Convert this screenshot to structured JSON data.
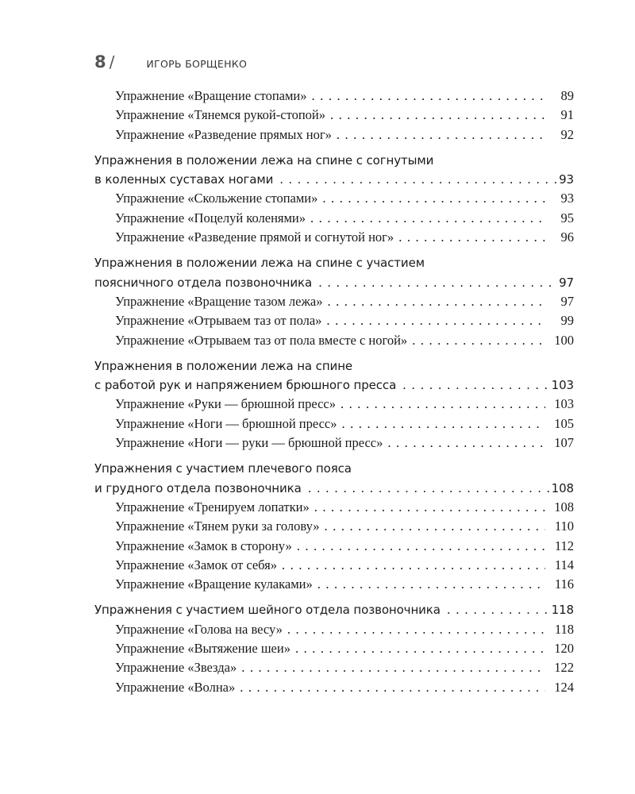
{
  "header": {
    "page_number": "8",
    "separator": "/",
    "author": "ИГОРЬ БОРЩЕНКО"
  },
  "sections": [
    {
      "heading": [],
      "page": "",
      "items": [
        {
          "label": "Упражнение «Вращение стопами»",
          "page": "89"
        },
        {
          "label": "Упражнение «Тянемся рукой-стопой»",
          "page": "91"
        },
        {
          "label": "Упражнение «Разведение прямых ног»",
          "page": "92"
        }
      ]
    },
    {
      "heading": [
        "Упражнения в положении лежа на спине с согнутыми",
        "в коленных суставах ногами"
      ],
      "page": "93",
      "items": [
        {
          "label": "Упражнение «Скольжение стопами»",
          "page": "93"
        },
        {
          "label": "Упражнение «Поцелуй коленями»",
          "page": "95"
        },
        {
          "label": "Упражнение «Разведение прямой и согнутой ног»",
          "page": "96"
        }
      ]
    },
    {
      "heading": [
        "Упражнения в положении лежа на спине с участием",
        "поясничного отдела позвоночника"
      ],
      "page": "97",
      "items": [
        {
          "label": "Упражнение «Вращение тазом лежа»",
          "page": "97"
        },
        {
          "label": "Упражнение «Отрываем таз от пола»",
          "page": "99"
        },
        {
          "label": "Упражнение «Отрываем таз от пола вместе с ногой»",
          "page": "100"
        }
      ]
    },
    {
      "heading": [
        "Упражнения в положении лежа на спине",
        "с работой рук и напряжением брюшного пресса"
      ],
      "page": "103",
      "items": [
        {
          "label": "Упражнение «Руки — брюшной пресс»",
          "page": "103"
        },
        {
          "label": "Упражнение «Ноги — брюшной пресс»",
          "page": "105"
        },
        {
          "label": "Упражнение «Ноги — руки — брюшной пресс»",
          "page": "107"
        }
      ]
    },
    {
      "heading": [
        "Упражнения с участием плечевого пояса",
        "и грудного отдела позвоночника"
      ],
      "page": "108",
      "items": [
        {
          "label": "Упражнение «Тренируем лопатки»",
          "page": "108"
        },
        {
          "label": "Упражнение «Тянем руки за голову»",
          "page": "110"
        },
        {
          "label": "Упражнение «Замок в сторону»",
          "page": "112"
        },
        {
          "label": "Упражнение «Замок от себя»",
          "page": "114"
        },
        {
          "label": "Упражнение «Вращение кулаками»",
          "page": "116"
        }
      ]
    },
    {
      "heading": [
        "Упражнения с участием шейного отдела позвоночника"
      ],
      "page": "118",
      "items": [
        {
          "label": "Упражнение «Голова на весу»",
          "page": "118"
        },
        {
          "label": "Упражнение «Вытяжение шеи»",
          "page": "120"
        },
        {
          "label": "Упражнение «Звезда»",
          "page": "122"
        },
        {
          "label": "Упражнение «Волна»",
          "page": "124"
        }
      ]
    }
  ]
}
